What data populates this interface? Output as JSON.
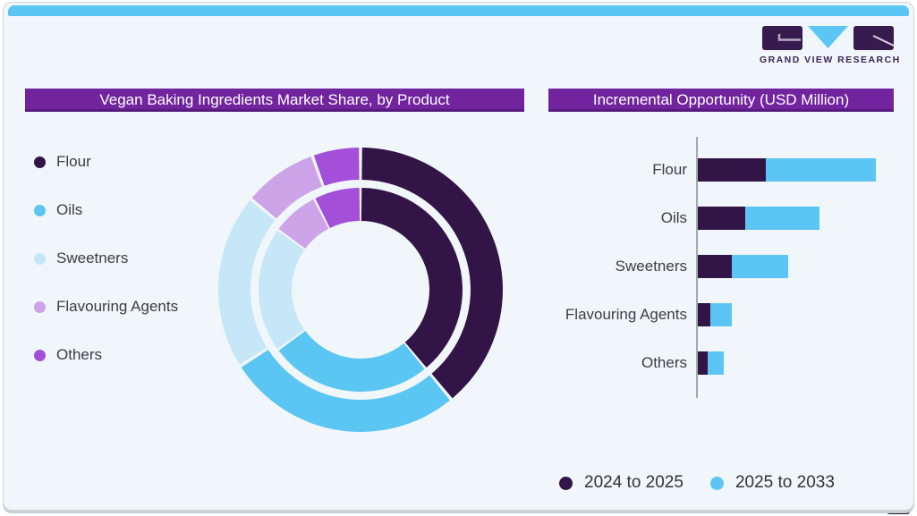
{
  "brand": {
    "logo_text": "GRAND VIEW RESEARCH"
  },
  "colors": {
    "accent_bar": "#5bc6f3",
    "header_bg": "#71249e",
    "header_text": "#ffffff",
    "card_bg": "#f0f6fa",
    "label_text": "#3d3d44",
    "axis": "#a3aaaf",
    "dark_purple": "#321447",
    "sky_blue": "#5bc6f3",
    "pale_blue": "#c6e7f7",
    "lavender": "#cda4e8",
    "violet": "#a44fd9"
  },
  "left_panel": {
    "header": "Vegan Baking Ingredients Market Share, by Product"
  },
  "right_panel": {
    "header": "Incremental Opportunity (USD Million)"
  },
  "chart_data": [
    {
      "type": "donut",
      "title": "Vegan Baking Ingredients Market Share, by Product",
      "categories": [
        "Flour",
        "Oils",
        "Sweetners",
        "Flavouring Agents",
        "Others"
      ],
      "colors": [
        "#321447",
        "#5bc6f3",
        "#c6e7f7",
        "#cda4e8",
        "#a44fd9"
      ],
      "rings": [
        {
          "name": "outer",
          "share_pct": [
            39,
            27,
            20,
            8.5,
            5.5
          ]
        },
        {
          "name": "inner",
          "share_pct": [
            39,
            26,
            20,
            7.5,
            7.5
          ]
        }
      ],
      "start_angle_deg": 0,
      "direction": "clockwise",
      "value_labels_shown": false,
      "note": "shares estimated from arc angles; no numeric labels visible"
    },
    {
      "type": "bar",
      "title": "Incremental Opportunity (USD Million)",
      "orientation": "horizontal",
      "stacked": true,
      "categories": [
        "Flour",
        "Oils",
        "Sweetners",
        "Flavouring Agents",
        "Others"
      ],
      "series": [
        {
          "name": "2024 to 2025",
          "color": "#321447",
          "values": [
            76,
            53,
            38,
            14,
            11
          ]
        },
        {
          "name": "2025 to 2033",
          "color": "#5bc6f3",
          "values": [
            123,
            83,
            63,
            24,
            18
          ]
        }
      ],
      "value_axis_shown": false,
      "grid": false,
      "legend_position": "bottom",
      "note": "no numeric axis or data labels visible; values are relative bar lengths (px)"
    }
  ]
}
